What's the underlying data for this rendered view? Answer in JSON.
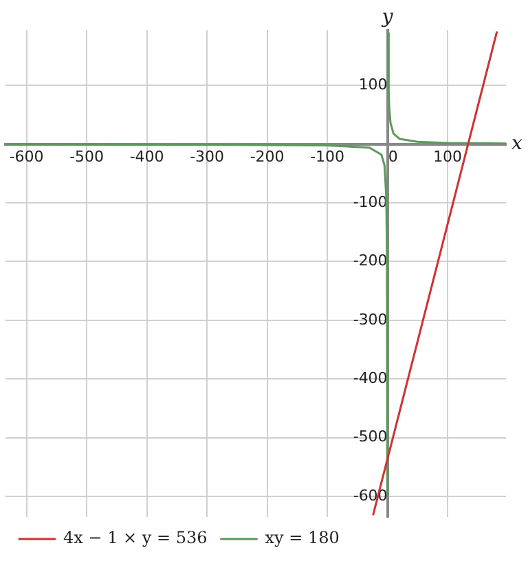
{
  "chart_data": {
    "type": "line",
    "xlabel": "x",
    "ylabel": "y",
    "xlim": [
      -635,
      197
    ],
    "ylim": [
      -635,
      194
    ],
    "xticks": [
      -600,
      -500,
      -400,
      -300,
      -200,
      -100,
      {
        "value": 0,
        "label": "0"
      },
      100
    ],
    "yticks": [
      -600,
      -500,
      -400,
      -300,
      -200,
      -100,
      100
    ],
    "grid": true,
    "legend": "bottom",
    "marker": "none",
    "line_style": "solid",
    "series": [
      {
        "name": "4x − 1 × y = 536",
        "color": "#cc3333",
        "x": [
          -24,
          182
        ],
        "values": [
          -632,
          192
        ]
      },
      {
        "name": "xy = 180",
        "color": "#5a9a5a",
        "x": [
          -635,
          -300,
          -100,
          -30,
          -10,
          -5,
          -2,
          -1,
          -0.3,
          0,
          0.95,
          2,
          3,
          5,
          10,
          20,
          50,
          100,
          197
        ],
        "values": [
          0,
          -1,
          -2,
          -6,
          -18,
          -36,
          -90,
          -180,
          -600,
          null,
          189,
          90,
          60,
          36,
          18,
          9,
          4,
          2,
          1
        ]
      }
    ]
  }
}
